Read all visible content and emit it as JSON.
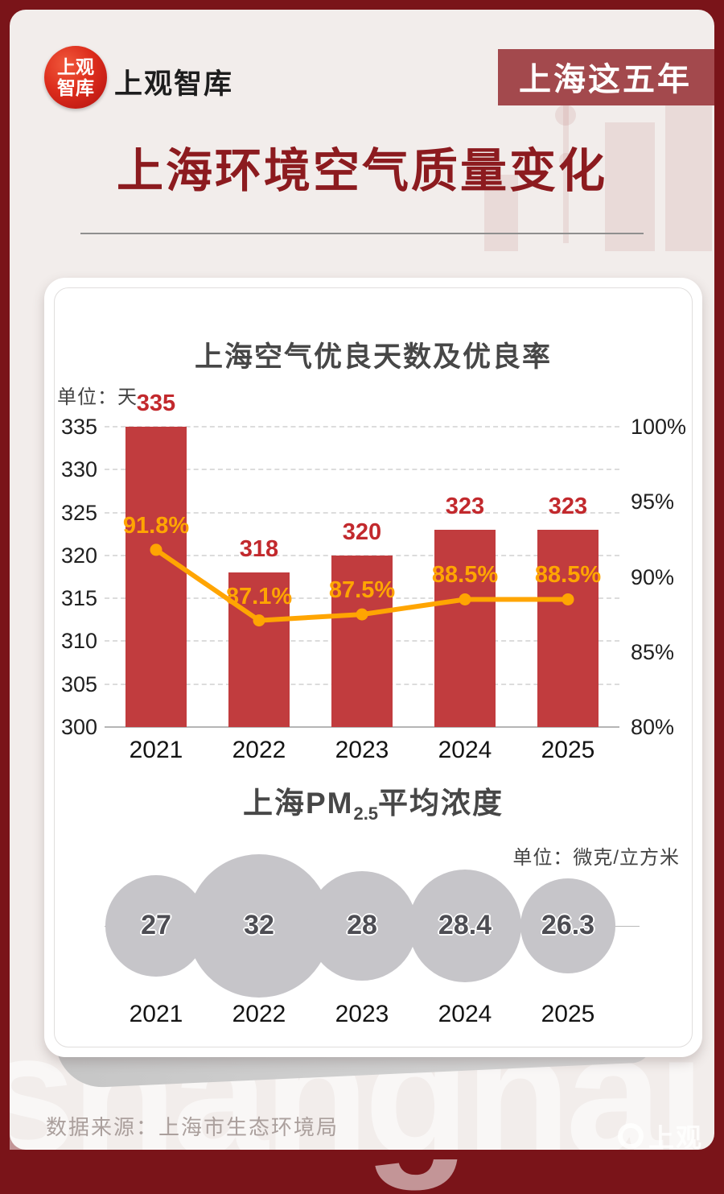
{
  "page": {
    "badge": "上海这五年",
    "main_title": "上海环境空气质量变化",
    "footer_source": "数据来源：上海市生态环境局",
    "watermark": "shanghai",
    "corner_logo_text": "上观"
  },
  "logo": {
    "seal_line1": "上观",
    "seal_line2": "智库",
    "wordmark": "上观智库"
  },
  "colors": {
    "frame_red": "#7a1419",
    "badge_red": "#a3494d",
    "title_red": "#8c1b1f",
    "bar_red": "#c13c3e",
    "bar_value_red": "#c2292d",
    "line_orange": "#ffa502",
    "bubble_gray": "#c6c5c9",
    "card_white": "#ffffff",
    "background": "#f2edeb"
  },
  "chart_data": [
    {
      "type": "bar",
      "subtype": "bar+line combo",
      "title": "上海空气优良天数及优良率",
      "unit": "单位：天",
      "categories": [
        "2021",
        "2022",
        "2023",
        "2024",
        "2025"
      ],
      "series": [
        {
          "name": "优良天数",
          "type": "bar",
          "axis": "left",
          "values": [
            335,
            318,
            320,
            323,
            323
          ],
          "value_labels": [
            "335",
            "318",
            "320",
            "323",
            "323"
          ]
        },
        {
          "name": "优良率",
          "type": "line",
          "axis": "right",
          "values": [
            91.8,
            87.1,
            87.5,
            88.5,
            88.5
          ],
          "value_labels": [
            "91.8%",
            "87.1%",
            "87.5%",
            "88.5%",
            "88.5%"
          ]
        }
      ],
      "left_axis": {
        "min": 300,
        "max": 335,
        "step": 5,
        "ticks": [
          "335",
          "330",
          "325",
          "320",
          "315",
          "310",
          "305",
          "300"
        ]
      },
      "right_axis": {
        "min": 80,
        "max": 100,
        "step": 5,
        "ticks": [
          "100%",
          "95%",
          "90%",
          "85%",
          "80%"
        ]
      },
      "grid": "horizontal dashed, solid baseline",
      "legend": "none"
    },
    {
      "type": "bubble",
      "title_prefix": "上海PM",
      "title_sub": "2.5",
      "title_suffix": "平均浓度",
      "unit": "单位：微克/立方米",
      "categories": [
        "2021",
        "2022",
        "2023",
        "2024",
        "2025"
      ],
      "values": [
        27,
        32,
        28,
        28.4,
        26.3
      ],
      "value_labels": [
        "27",
        "32",
        "28",
        "28.4",
        "26.3"
      ]
    }
  ]
}
